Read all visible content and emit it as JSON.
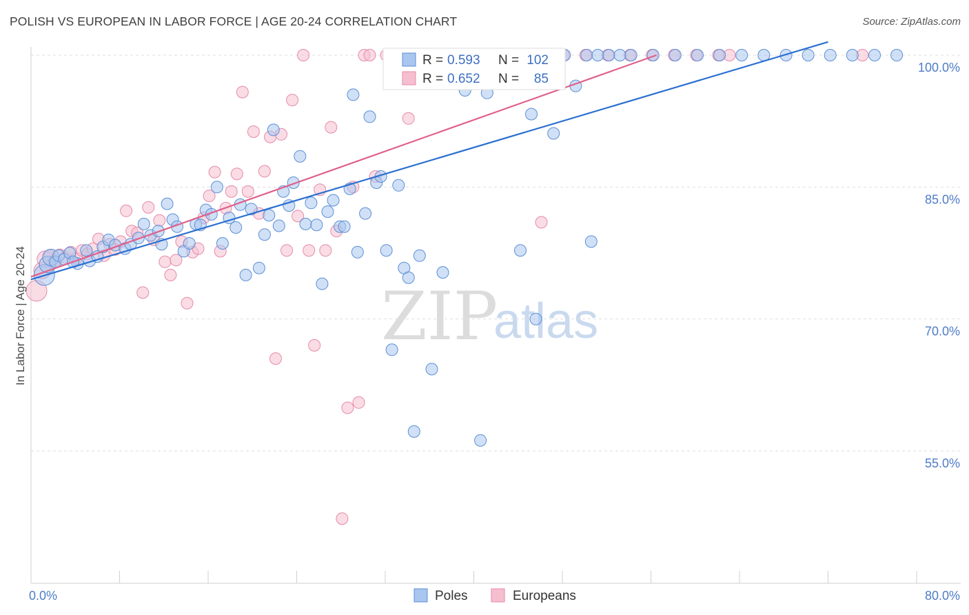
{
  "header": {
    "title": "POLISH VS EUROPEAN IN LABOR FORCE | AGE 20-24 CORRELATION CHART",
    "source": "Source: ZipAtlas.com"
  },
  "watermark": {
    "zip": "ZIP",
    "atlas": "atlas"
  },
  "legend_top": {
    "poles": {
      "r_label": "R =",
      "r_value": "0.593",
      "n_label": "N =",
      "n_value": "102"
    },
    "europeans": {
      "r_label": "R =",
      "r_value": "0.652",
      "n_label": "N =",
      "n_value": "85"
    }
  },
  "legend_bottom": {
    "poles": "Poles",
    "europeans": "Europeans"
  },
  "colors": {
    "poles_fill": "#a9c6ee",
    "poles_stroke": "#5b8fd6",
    "poles_line": "#2a6fd0",
    "europeans_fill": "#f6bfd0",
    "europeans_stroke": "#e68aa8",
    "europeans_line": "#e0608b",
    "grid": "#dedede",
    "axis_label": "#4d7cc7"
  },
  "chart_data": {
    "type": "scatter",
    "title": "POLISH VS EUROPEAN IN LABOR FORCE | AGE 20-24 CORRELATION CHART",
    "xlabel": "",
    "ylabel": "In Labor Force | Age 20-24",
    "xlim": [
      0,
      80
    ],
    "ylim": [
      40,
      102
    ],
    "x_tick_labels": [
      "0.0%",
      "80.0%"
    ],
    "y_ticks": [
      55,
      70,
      85,
      100
    ],
    "y_tick_labels": [
      "55.0%",
      "70.0%",
      "85.0%",
      "100.0%"
    ],
    "grid": true,
    "series": [
      {
        "name": "Poles",
        "r": 0.593,
        "n": 102,
        "trend": {
          "x": [
            0,
            72
          ],
          "y": [
            74.5,
            101.5
          ]
        },
        "points": [
          [
            1.2,
            75.0
          ],
          [
            1.5,
            76.2
          ],
          [
            1.8,
            77.0
          ],
          [
            2.2,
            76.5
          ],
          [
            2.5,
            77.2
          ],
          [
            3.0,
            76.8
          ],
          [
            3.5,
            77.5
          ],
          [
            4.2,
            76.3
          ],
          [
            5.0,
            77.8
          ],
          [
            5.3,
            76.6
          ],
          [
            6.0,
            77.1
          ],
          [
            6.5,
            78.2
          ],
          [
            7.0,
            79.0
          ],
          [
            7.6,
            78.4
          ],
          [
            8.5,
            78.0
          ],
          [
            9.0,
            78.5
          ],
          [
            9.7,
            79.2
          ],
          [
            10.2,
            80.8
          ],
          [
            10.8,
            79.5
          ],
          [
            11.5,
            80.0
          ],
          [
            11.8,
            78.5
          ],
          [
            12.3,
            83.1
          ],
          [
            12.8,
            81.3
          ],
          [
            13.2,
            80.5
          ],
          [
            13.8,
            77.7
          ],
          [
            14.3,
            78.6
          ],
          [
            14.9,
            80.8
          ],
          [
            15.3,
            80.7
          ],
          [
            15.8,
            82.4
          ],
          [
            16.3,
            81.9
          ],
          [
            16.8,
            85.0
          ],
          [
            17.3,
            78.6
          ],
          [
            17.9,
            81.5
          ],
          [
            18.5,
            80.4
          ],
          [
            18.9,
            83.0
          ],
          [
            19.4,
            75.0
          ],
          [
            19.9,
            82.5
          ],
          [
            20.6,
            75.8
          ],
          [
            21.1,
            79.6
          ],
          [
            21.5,
            81.8
          ],
          [
            21.9,
            91.5
          ],
          [
            22.4,
            80.6
          ],
          [
            22.8,
            84.5
          ],
          [
            23.3,
            82.9
          ],
          [
            23.7,
            85.5
          ],
          [
            24.3,
            88.5
          ],
          [
            24.8,
            80.8
          ],
          [
            25.3,
            83.2
          ],
          [
            25.8,
            80.7
          ],
          [
            26.3,
            74.0
          ],
          [
            26.8,
            82.2
          ],
          [
            27.3,
            83.5
          ],
          [
            27.9,
            80.5
          ],
          [
            28.3,
            80.5
          ],
          [
            28.8,
            84.8
          ],
          [
            29.1,
            95.5
          ],
          [
            29.5,
            77.6
          ],
          [
            30.2,
            82.0
          ],
          [
            30.6,
            93.0
          ],
          [
            31.2,
            85.5
          ],
          [
            31.6,
            86.2
          ],
          [
            32.1,
            77.8
          ],
          [
            32.6,
            66.5
          ],
          [
            33.2,
            85.2
          ],
          [
            33.7,
            75.8
          ],
          [
            34.1,
            74.7
          ],
          [
            34.6,
            57.2
          ],
          [
            35.1,
            77.2
          ],
          [
            36.2,
            64.3
          ],
          [
            37.2,
            75.3
          ],
          [
            38.2,
            100.0
          ],
          [
            39.2,
            96.0
          ],
          [
            40.2,
            100.0
          ],
          [
            40.6,
            56.2
          ],
          [
            41.2,
            95.7
          ],
          [
            43.2,
            100.0
          ],
          [
            44.2,
            77.8
          ],
          [
            45.2,
            93.3
          ],
          [
            45.6,
            70.0
          ],
          [
            46.2,
            100.0
          ],
          [
            47.2,
            91.1
          ],
          [
            48.2,
            100.0
          ],
          [
            49.2,
            96.5
          ],
          [
            50.2,
            100.0
          ],
          [
            50.6,
            78.8
          ],
          [
            51.2,
            100.0
          ],
          [
            52.2,
            100.0
          ],
          [
            53.2,
            100.0
          ],
          [
            54.2,
            100.0
          ],
          [
            56.2,
            100.0
          ],
          [
            58.2,
            100.0
          ],
          [
            60.2,
            100.0
          ],
          [
            62.2,
            100.0
          ],
          [
            64.2,
            100.0
          ],
          [
            66.2,
            100.0
          ],
          [
            68.2,
            100.0
          ],
          [
            70.2,
            100.0
          ],
          [
            72.2,
            100.0
          ],
          [
            74.2,
            100.0
          ],
          [
            76.2,
            100.0
          ],
          [
            78.2,
            100.0
          ],
          [
            3.8,
            76.5
          ]
        ]
      },
      {
        "name": "Europeans",
        "r": 0.652,
        "n": 85,
        "trend": {
          "x": [
            0,
            56.5
          ],
          "y": [
            74.8,
            100.0
          ]
        },
        "points": [
          [
            0.5,
            73.2
          ],
          [
            1.0,
            75.5
          ],
          [
            1.3,
            76.8
          ],
          [
            1.7,
            77.2
          ],
          [
            2.1,
            76.6
          ],
          [
            2.6,
            77.3
          ],
          [
            3.1,
            77.0
          ],
          [
            3.6,
            77.6
          ],
          [
            4.1,
            76.9
          ],
          [
            4.6,
            77.8
          ],
          [
            5.1,
            77.4
          ],
          [
            5.6,
            78.0
          ],
          [
            6.1,
            79.1
          ],
          [
            6.6,
            77.2
          ],
          [
            7.1,
            78.5
          ],
          [
            7.6,
            77.9
          ],
          [
            8.1,
            78.8
          ],
          [
            8.6,
            82.3
          ],
          [
            9.1,
            80.0
          ],
          [
            9.6,
            79.8
          ],
          [
            10.1,
            73.0
          ],
          [
            10.6,
            82.7
          ],
          [
            11.1,
            79.0
          ],
          [
            11.6,
            81.2
          ],
          [
            12.1,
            76.5
          ],
          [
            12.6,
            75.0
          ],
          [
            13.1,
            76.7
          ],
          [
            13.6,
            78.8
          ],
          [
            14.1,
            71.8
          ],
          [
            14.6,
            77.6
          ],
          [
            15.1,
            78.0
          ],
          [
            15.6,
            81.5
          ],
          [
            16.1,
            84.0
          ],
          [
            16.6,
            86.7
          ],
          [
            17.1,
            77.7
          ],
          [
            17.6,
            82.6
          ],
          [
            18.1,
            84.5
          ],
          [
            18.6,
            86.5
          ],
          [
            19.1,
            95.8
          ],
          [
            19.6,
            84.5
          ],
          [
            20.1,
            91.3
          ],
          [
            20.6,
            82.0
          ],
          [
            21.1,
            86.8
          ],
          [
            21.6,
            90.7
          ],
          [
            22.1,
            65.5
          ],
          [
            22.6,
            91.0
          ],
          [
            23.1,
            77.8
          ],
          [
            23.6,
            94.9
          ],
          [
            24.1,
            81.7
          ],
          [
            24.6,
            100.0
          ],
          [
            25.1,
            77.8
          ],
          [
            25.6,
            67.0
          ],
          [
            26.1,
            84.7
          ],
          [
            26.6,
            77.8
          ],
          [
            27.1,
            91.8
          ],
          [
            27.6,
            80.0
          ],
          [
            28.1,
            47.3
          ],
          [
            28.6,
            59.9
          ],
          [
            29.1,
            85.0
          ],
          [
            29.6,
            60.5
          ],
          [
            30.1,
            100.0
          ],
          [
            30.6,
            100.0
          ],
          [
            31.1,
            86.2
          ],
          [
            32.1,
            100.0
          ],
          [
            33.1,
            100.0
          ],
          [
            34.1,
            92.8
          ],
          [
            35.1,
            100.0
          ],
          [
            36.1,
            100.0
          ],
          [
            37.1,
            100.0
          ],
          [
            38.1,
            100.0
          ],
          [
            39.1,
            100.0
          ],
          [
            41.1,
            100.0
          ],
          [
            43.1,
            100.0
          ],
          [
            45.1,
            100.0
          ],
          [
            46.1,
            81.0
          ],
          [
            48.1,
            100.0
          ],
          [
            50.1,
            100.0
          ],
          [
            52.1,
            100.0
          ],
          [
            54.1,
            100.0
          ],
          [
            56.1,
            100.0
          ],
          [
            58.1,
            100.0
          ],
          [
            60.1,
            100.0
          ],
          [
            62.1,
            100.0
          ],
          [
            63.1,
            100.0
          ],
          [
            75.1,
            100.0
          ]
        ]
      }
    ]
  }
}
